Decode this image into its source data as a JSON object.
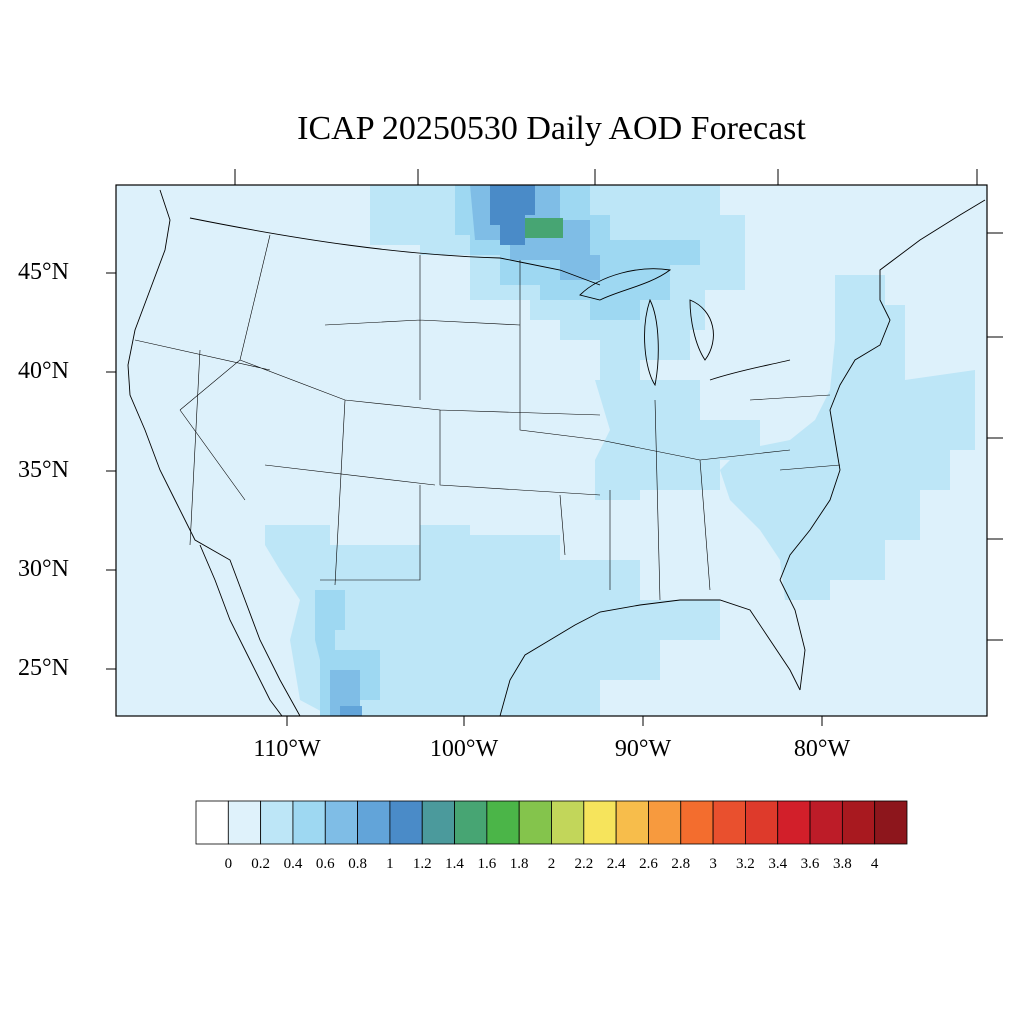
{
  "title": "ICAP 20250530 Daily AOD Forecast",
  "map": {
    "region": "Contiguous United States",
    "projection": "Lambert conformal",
    "variable": "Aerosol optical depth",
    "lat_labels": [
      "45°N",
      "40°N",
      "35°N",
      "30°N",
      "25°N"
    ],
    "lon_labels": [
      "110°W",
      "100°W",
      "90°W",
      "80°W"
    ],
    "highlights": [
      {
        "area": "Northern Minnesota / Lake of the Woods",
        "aod_range": "0.8–1.4"
      },
      {
        "area": "Great Lakes",
        "aod_range": "0.4–0.8"
      },
      {
        "area": "Sierra Madre, northwest Mexico",
        "aod_range": "0.4–1.0"
      },
      {
        "area": "Atlantic off the East Coast",
        "aod_range": "0.2–0.4"
      }
    ],
    "colors": {
      "land_background": "#ddf1fb",
      "line": "#000000"
    }
  },
  "colorbar": {
    "labels": [
      "0",
      "0.2",
      "0.4",
      "0.6",
      "0.8",
      "1",
      "1.2",
      "1.4",
      "1.6",
      "1.8",
      "2",
      "2.2",
      "2.4",
      "2.6",
      "2.8",
      "3",
      "3.2",
      "3.4",
      "3.6",
      "3.8",
      "4"
    ],
    "colors": [
      "#ffffff",
      "#dff2fb",
      "#bde6f7",
      "#9ed8f2",
      "#7fbde6",
      "#62a4d9",
      "#4a8bc8",
      "#4b9a9c",
      "#47a573",
      "#4bb548",
      "#84c44c",
      "#c2d65a",
      "#f6e45c",
      "#f7bd4b",
      "#f79a3e",
      "#f36d2e",
      "#e9502e",
      "#de3a2b",
      "#d21f2a",
      "#bd1c28",
      "#a8191f",
      "#8d161c"
    ]
  }
}
